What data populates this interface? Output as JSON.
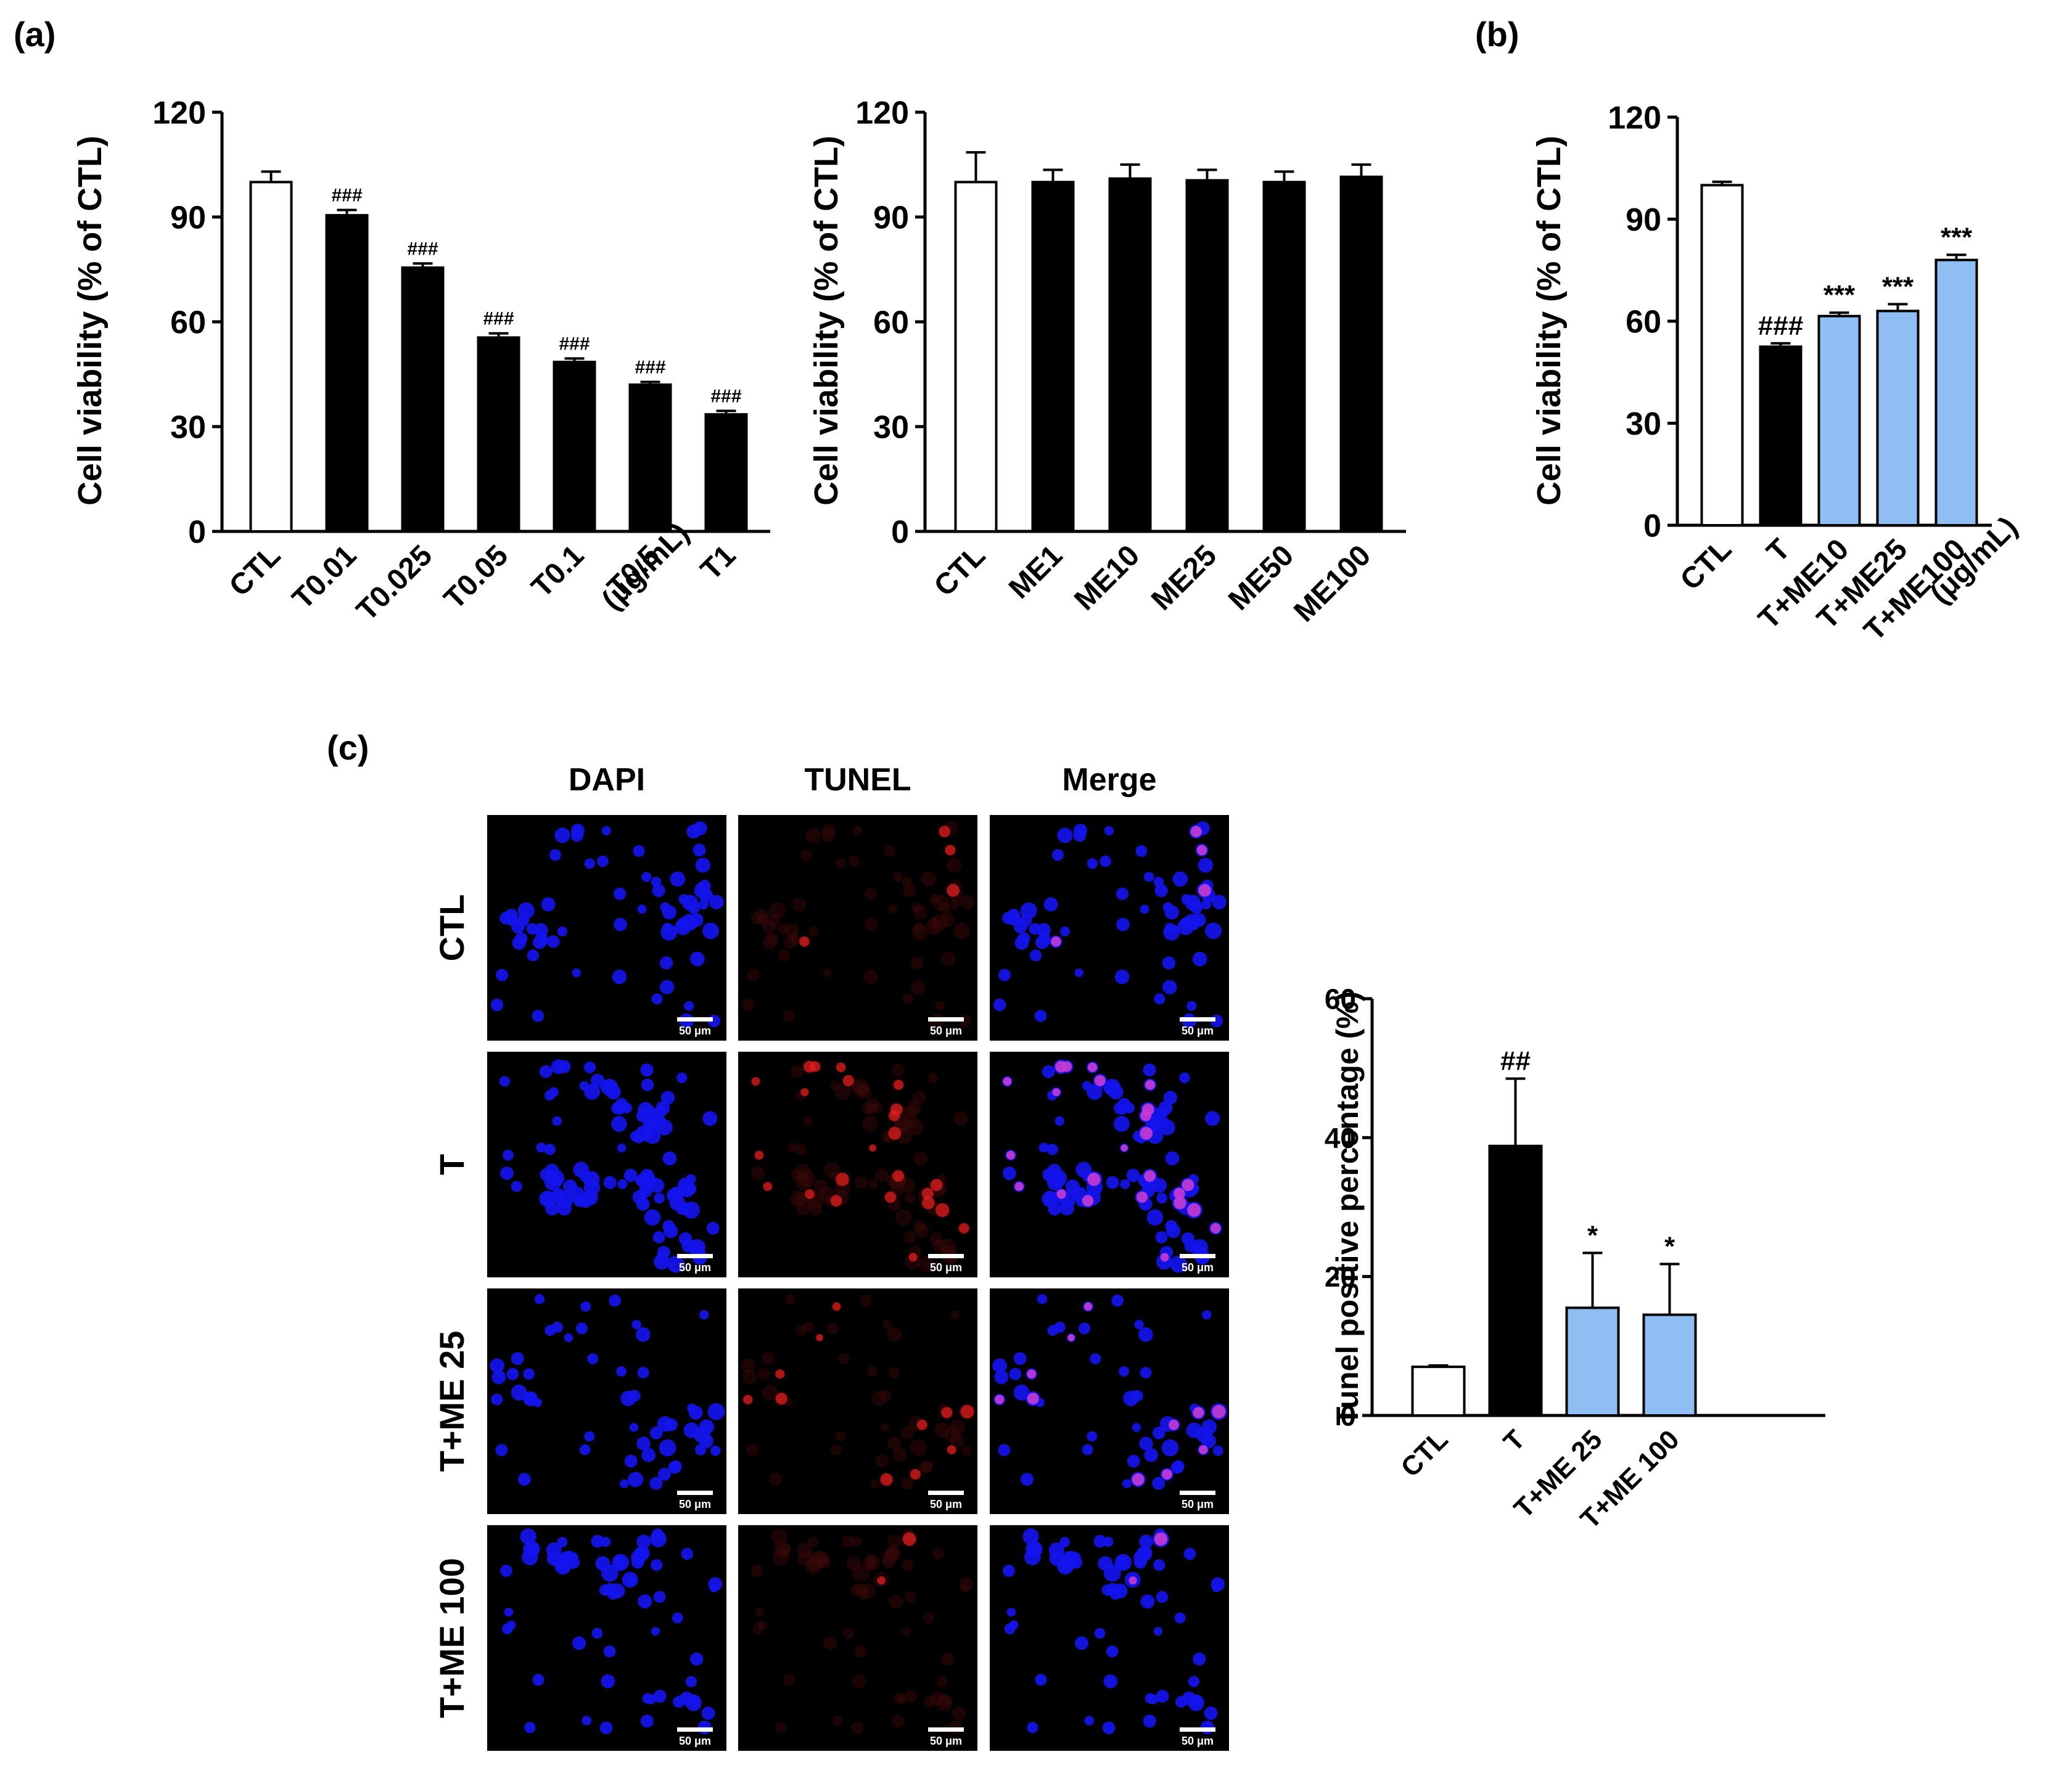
{
  "panel_labels": {
    "a": "(a)",
    "b": "(b)",
    "c": "(c)"
  },
  "colors": {
    "treated": "#000000",
    "control": "#ffffff",
    "combined": "#8fbff2",
    "dapi": "#1414ee",
    "tunel": "#e01e1e",
    "merge_overlap": "#c83cd2"
  },
  "chart_data": [
    {
      "type": "bar",
      "panel": "(a)",
      "ylabel": "Cell viability (% of CTL)",
      "ylim": [
        0,
        120
      ],
      "yticks": [
        0,
        30,
        60,
        90,
        120
      ],
      "categories": [
        "CTL",
        "T0.01",
        "T0.025",
        "T0.05",
        "T0.1",
        "T0.5",
        "T1"
      ],
      "unit_label": "(μg/mL)",
      "values": [
        100,
        90.5,
        75.5,
        55.5,
        48.5,
        42,
        33.5
      ],
      "errors": [
        3,
        1.5,
        1.2,
        1.2,
        1,
        0.8,
        1
      ],
      "fills": [
        "control",
        "treated",
        "treated",
        "treated",
        "treated",
        "treated",
        "treated"
      ],
      "annotations": [
        "",
        "###",
        "###",
        "###",
        "###",
        "###",
        "###"
      ]
    },
    {
      "type": "bar",
      "panel": "(a)",
      "ylabel": "Cell viability (% of CTL)",
      "ylim": [
        0,
        120
      ],
      "yticks": [
        0,
        30,
        60,
        90,
        120
      ],
      "categories": [
        "CTL",
        "ME1",
        "ME10",
        "ME25",
        "ME50",
        "ME100"
      ],
      "unit_label": "",
      "values": [
        100,
        100,
        101,
        100.5,
        100,
        101.5
      ],
      "errors": [
        8.5,
        3.5,
        4,
        3,
        3,
        3.5
      ],
      "fills": [
        "control",
        "treated",
        "treated",
        "treated",
        "treated",
        "treated"
      ],
      "annotations": [
        "",
        "",
        "",
        "",
        "",
        ""
      ]
    },
    {
      "type": "bar",
      "panel": "(b)",
      "ylabel": "Cell viability (% of CTL)",
      "ylim": [
        0,
        120
      ],
      "yticks": [
        0,
        30,
        60,
        90,
        120
      ],
      "categories": [
        "CTL",
        "T",
        "T+ME10",
        "T+ME25",
        "T+ME100"
      ],
      "unit_label": "(μg/mL)",
      "values": [
        100,
        52.5,
        61.5,
        63,
        78
      ],
      "errors": [
        1,
        1,
        1,
        2,
        1.5
      ],
      "fills": [
        "control",
        "treated",
        "combined",
        "combined",
        "combined"
      ],
      "annotations": [
        "",
        "###",
        "***",
        "***",
        "***"
      ]
    },
    {
      "type": "bar",
      "panel": "(c)",
      "ylabel": "Tunel positive percentage (%)",
      "ylim": [
        0,
        60
      ],
      "yticks": [
        0,
        20,
        40,
        60
      ],
      "categories": [
        "CTL",
        "T",
        "T+ME 25",
        "T+ME 100"
      ],
      "unit_label": "",
      "values": [
        7,
        38.8,
        15.5,
        14.5
      ],
      "errors": [
        0.2,
        9.7,
        7.9,
        7.3
      ],
      "fills": [
        "control",
        "treated",
        "combined",
        "combined"
      ],
      "annotations": [
        "",
        "##",
        "*",
        "*"
      ]
    }
  ],
  "microscopy": {
    "columns": [
      "DAPI",
      "TUNEL",
      "Merge"
    ],
    "rows": [
      "CTL",
      "T",
      "T+ME 25",
      "T+ME 100"
    ],
    "scale_bar": "50 μm",
    "tunel_level": [
      0.15,
      0.85,
      0.35,
      0.15
    ]
  }
}
